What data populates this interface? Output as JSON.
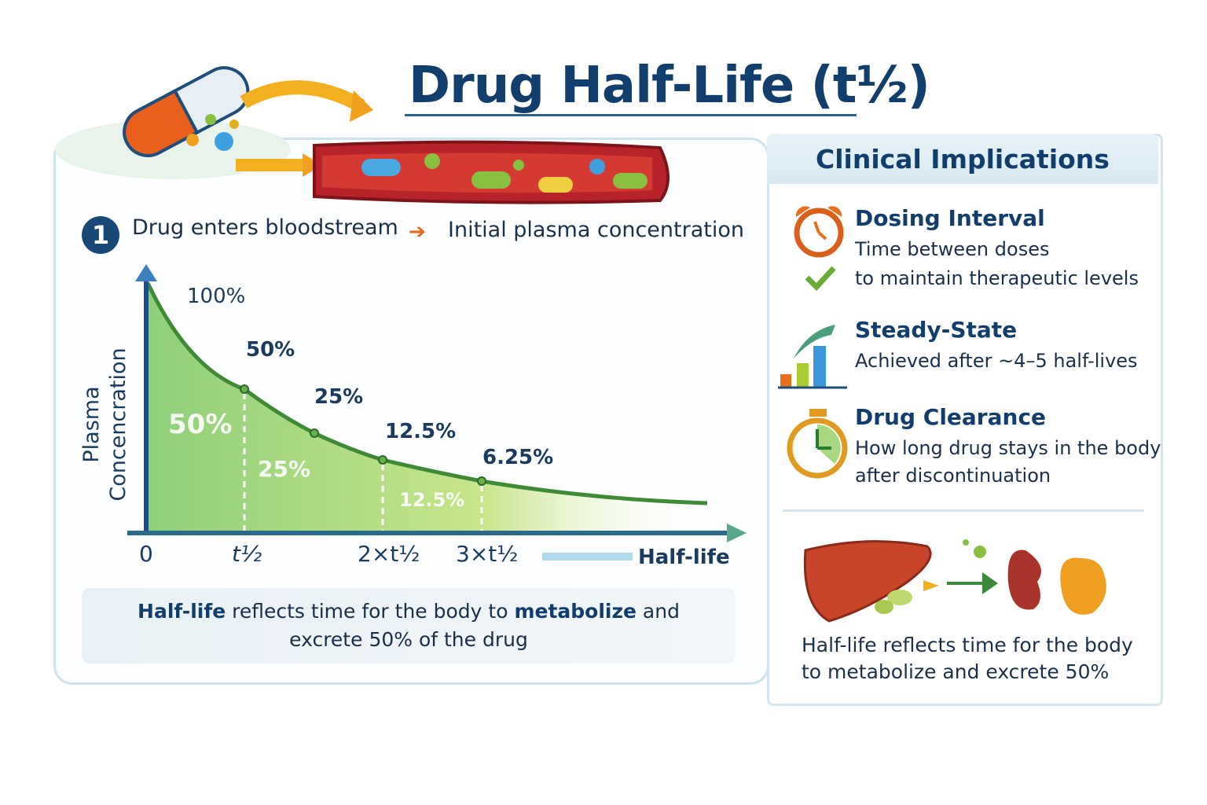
{
  "title": "Drug Half-Life (t½)",
  "step": {
    "number": "1",
    "text": "Drug enters bloodstream",
    "result": "Initial plasma concentration"
  },
  "chart_data": {
    "type": "area",
    "ylabel_line1": "Plasma",
    "ylabel_line2": "Concencration",
    "xlabel": "Half-life",
    "x_ticks": [
      "0",
      "t½",
      "2×t½",
      "3×t½"
    ],
    "point_labels": [
      "100%",
      "50%",
      "25%",
      "12.5%",
      "6.25%"
    ],
    "region_labels": [
      "50%",
      "25%",
      "12.5%"
    ],
    "values_percent": [
      100,
      50,
      25,
      12.5,
      6.25
    ],
    "colors": {
      "curve": "#3f8a34",
      "fill": "#a9d86a",
      "axis": "#1a4f8a"
    }
  },
  "summary": {
    "bold1": "Half-life",
    "t1": " reflects time for the body to ",
    "bold2": "metabolize",
    "t2": " and",
    "line2": "excrete 50% of the drug"
  },
  "clinical": {
    "heading": "Clinical Implications",
    "items": [
      {
        "title": "Dosing Interval",
        "lines": [
          "Time between doses",
          "to maintain therapeutic levels"
        ],
        "icon": "alarm-clock-icon"
      },
      {
        "title": "Steady-State",
        "lines": [
          "Achieved after ~4–5 half-lives"
        ],
        "icon": "bar-chart-icon"
      },
      {
        "title": "Drug Clearance",
        "lines": [
          "How long drug stays in the body",
          "after discontinuation"
        ],
        "icon": "stopwatch-icon"
      }
    ],
    "footer_lines": [
      "Half-life reflects time for the body",
      "to metabolize and excrete 50%"
    ]
  }
}
